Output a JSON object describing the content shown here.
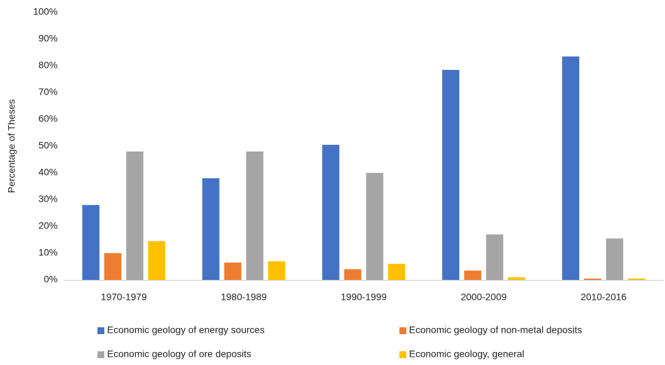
{
  "chart_data": {
    "type": "bar",
    "y_label": "Percentage  of Theses",
    "categories": [
      "1970-1979",
      "1980-1989",
      "1990-1999",
      "2000-2009",
      "2010-2016"
    ],
    "series": [
      {
        "name": "Economic geology of energy sources",
        "color": "#4472c4",
        "values": [
          28,
          38,
          50.5,
          78.5,
          83.5
        ]
      },
      {
        "name": "Economic geology of non-metal deposits",
        "color": "#ed7d31",
        "values": [
          10,
          6.5,
          4,
          3.5,
          0.5
        ]
      },
      {
        "name": "Economic geology of ore deposits",
        "color": "#a5a5a5",
        "values": [
          48,
          48,
          40,
          17,
          15.5
        ]
      },
      {
        "name": "Economic geology, general",
        "color": "#ffc000",
        "values": [
          14.5,
          7,
          6,
          1,
          0.5
        ]
      }
    ],
    "ylim": [
      0,
      100
    ],
    "yticks": [
      {
        "value": 0,
        "label": "0%"
      },
      {
        "value": 10,
        "label": "10%"
      },
      {
        "value": 20,
        "label": "20%"
      },
      {
        "value": 30,
        "label": "30%"
      },
      {
        "value": 40,
        "label": "40%"
      },
      {
        "value": 50,
        "label": "50%"
      },
      {
        "value": 60,
        "label": "60%"
      },
      {
        "value": 70,
        "label": "70%"
      },
      {
        "value": 80,
        "label": "80%"
      },
      {
        "value": 90,
        "label": "90%"
      },
      {
        "value": 100,
        "label": "100%"
      }
    ],
    "grid": false
  }
}
